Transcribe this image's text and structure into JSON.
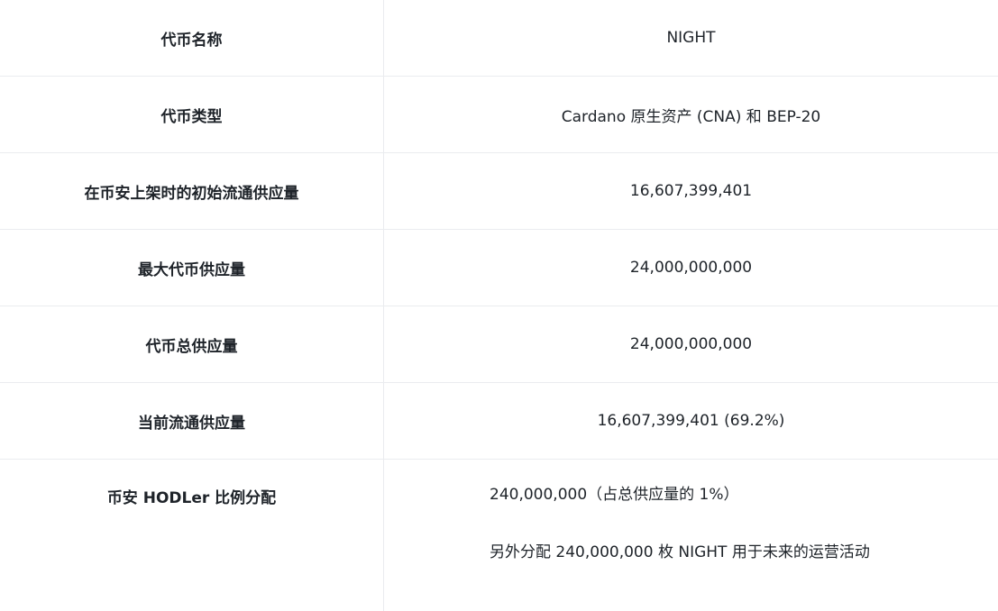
{
  "rows": [
    {
      "label": "代币名称",
      "value": "NIGHT"
    },
    {
      "label": "代币类型",
      "value": "Cardano 原生资产 (CNA) 和 BEP-20"
    },
    {
      "label": "在币安上架时的初始流通供应量",
      "value": "16,607,399,401"
    },
    {
      "label": "最大代币供应量",
      "value": "24,000,000,000"
    },
    {
      "label": "代币总供应量",
      "value": "24,000,000,000"
    },
    {
      "label": "当前流通供应量",
      "value": "16,607,399,401 (69.2%)"
    }
  ],
  "hodler": {
    "label": "币安 HODLer 比例分配",
    "lines": [
      "240,000,000（占总供应量的 1%）",
      "另外分配 240,000,000 枚 NIGHT 用于未来的运营活动"
    ]
  }
}
